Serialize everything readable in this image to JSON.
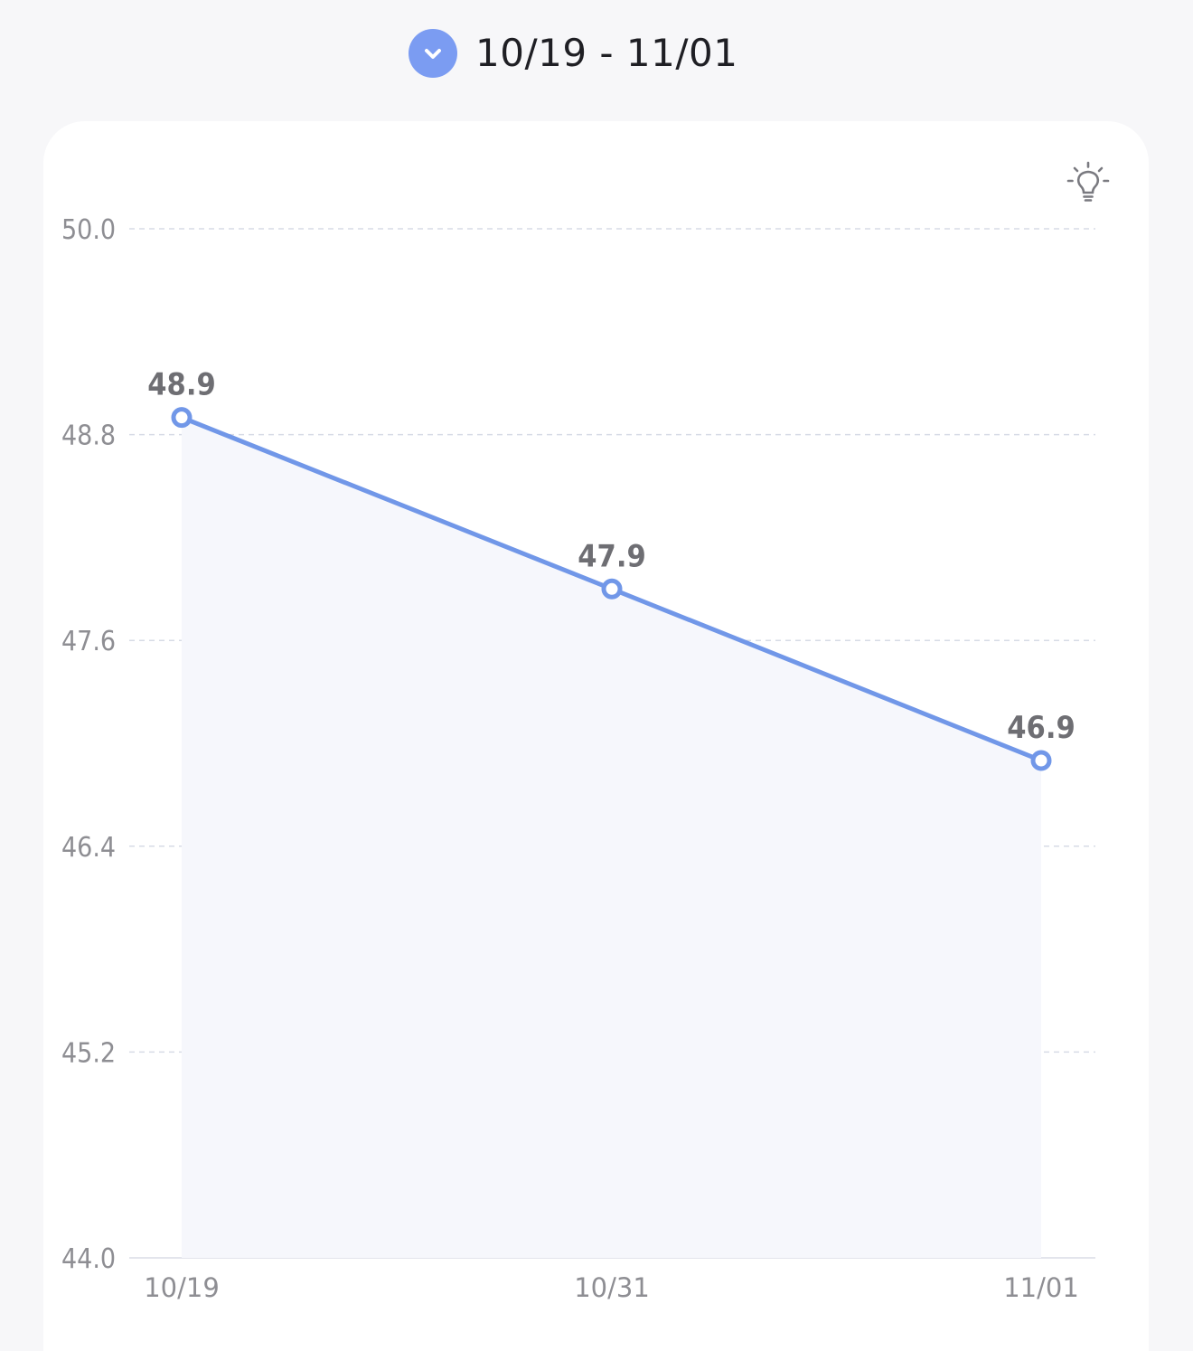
{
  "header": {
    "date_range": "10/19 - 11/01",
    "toggle_icon": "chevron-down-icon"
  },
  "card": {
    "hint_icon": "lightbulb-icon"
  },
  "colors": {
    "accent": "#7b9cf2",
    "line": "#7197e8",
    "area_fill": "#f6f7fc",
    "grid": "#d7dbe6",
    "axis_label": "#8e8e93",
    "data_label": "#6e6e73",
    "background": "#f7f7f9",
    "card": "#ffffff"
  },
  "chart_data": {
    "type": "area",
    "categories": [
      "10/19",
      "10/31",
      "11/01"
    ],
    "values": [
      48.9,
      47.9,
      46.9
    ],
    "data_labels": [
      "48.9",
      "47.9",
      "46.9"
    ],
    "y_ticks": [
      "50.0",
      "48.8",
      "47.6",
      "46.4",
      "45.2",
      "44.0"
    ],
    "ylim": [
      44.0,
      50.0
    ],
    "grid": true,
    "legend": "none"
  }
}
